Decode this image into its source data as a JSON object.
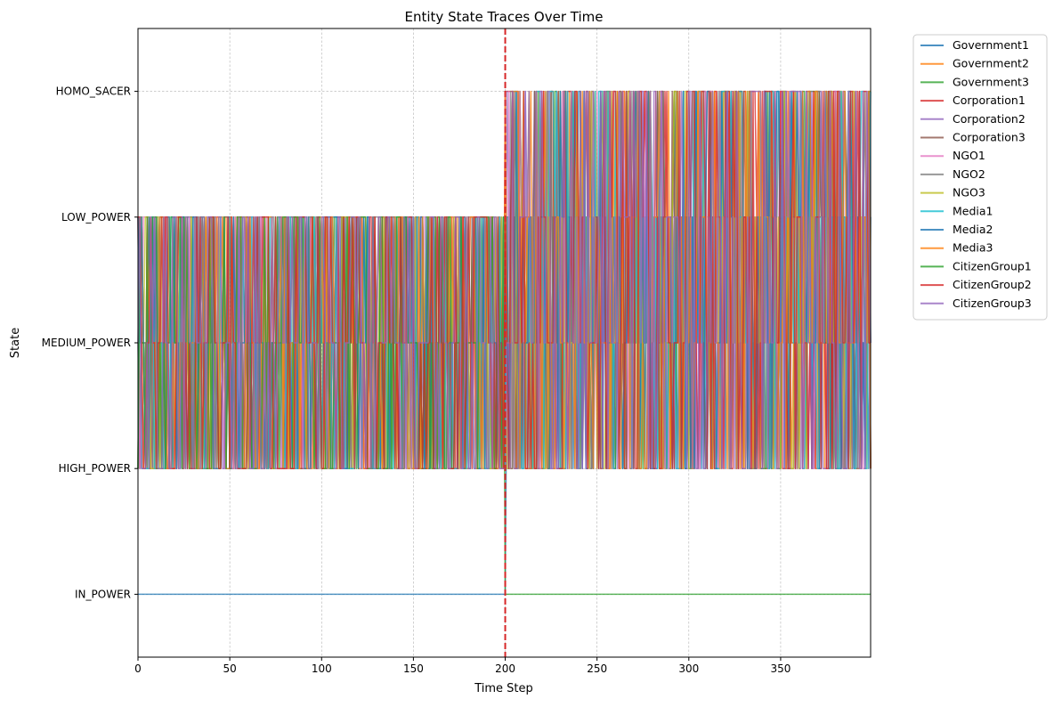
{
  "chart_data": {
    "type": "line",
    "title": "Entity State Traces Over Time",
    "xlabel": "Time Step",
    "ylabel": "State",
    "xlim": [
      0,
      399
    ],
    "xticks": [
      0,
      50,
      100,
      150,
      200,
      250,
      300,
      350
    ],
    "ylim": [
      -0.5,
      4.5
    ],
    "states": [
      "IN_POWER",
      "HIGH_POWER",
      "MEDIUM_POWER",
      "LOW_POWER",
      "HOMO_SACER"
    ],
    "grid": true,
    "legend_position": "outside-top-right",
    "event_line": {
      "x": 200,
      "color": "#d62728",
      "style": "dashed"
    },
    "seed": 7,
    "series": [
      {
        "name": "Government1",
        "color": "#1f77b4",
        "pattern": "in_power_until_200"
      },
      {
        "name": "Government2",
        "color": "#ff7f0e",
        "pattern": "random_high_to_low_then_high_to_homo_sacer"
      },
      {
        "name": "Government3",
        "color": "#2ca02c",
        "pattern": "random_high_to_low_then_high_to_homo_sacer"
      },
      {
        "name": "Corporation1",
        "color": "#d62728",
        "pattern": "random_high_to_low_then_high_to_homo_sacer"
      },
      {
        "name": "Corporation2",
        "color": "#9467bd",
        "pattern": "random_high_to_low_then_high_to_homo_sacer"
      },
      {
        "name": "Corporation3",
        "color": "#8c564b",
        "pattern": "random_high_to_low_then_high_to_homo_sacer"
      },
      {
        "name": "NGO1",
        "color": "#e377c2",
        "pattern": "random_high_to_low_then_high_to_homo_sacer"
      },
      {
        "name": "NGO2",
        "color": "#7f7f7f",
        "pattern": "random_high_to_low_then_high_to_homo_sacer"
      },
      {
        "name": "NGO3",
        "color": "#bcbd22",
        "pattern": "random_high_to_low_then_high_to_homo_sacer"
      },
      {
        "name": "Media1",
        "color": "#17becf",
        "pattern": "random_high_to_low_then_high_to_homo_sacer"
      },
      {
        "name": "Media2",
        "color": "#1f77b4",
        "pattern": "random_high_to_low_then_high_to_homo_sacer"
      },
      {
        "name": "Media3",
        "color": "#ff7f0e",
        "pattern": "random_high_to_low_then_high_to_homo_sacer"
      },
      {
        "name": "CitizenGroup1",
        "color": "#2ca02c",
        "pattern": "random_high_to_low_then_in_power_after_200"
      },
      {
        "name": "CitizenGroup2",
        "color": "#d62728",
        "pattern": "random_high_to_low_then_high_to_homo_sacer"
      },
      {
        "name": "CitizenGroup3",
        "color": "#9467bd",
        "pattern": "random_high_to_low_then_high_to_homo_sacer"
      }
    ]
  }
}
